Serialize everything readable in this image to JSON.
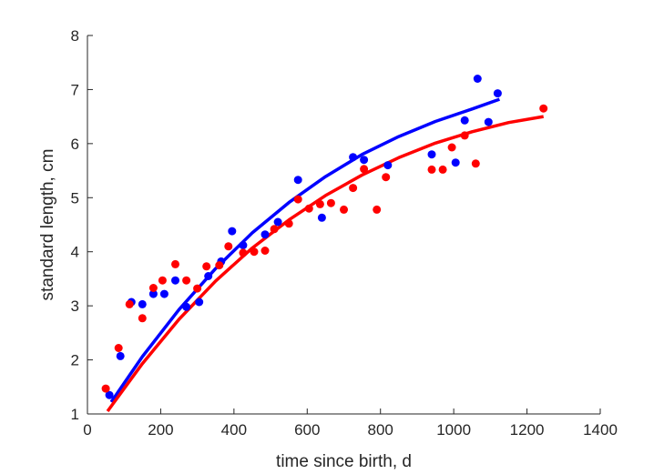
{
  "chart_data": {
    "type": "scatter",
    "title": "",
    "xlabel": "time since birth, d",
    "ylabel": "standard length, cm",
    "xlim": [
      0,
      1400
    ],
    "ylim": [
      1,
      8
    ],
    "xticks": [
      0,
      200,
      400,
      600,
      800,
      1000,
      1200,
      1400
    ],
    "yticks": [
      1,
      2,
      3,
      4,
      5,
      6,
      7,
      8
    ],
    "grid": false,
    "legend": "none",
    "series": [
      {
        "color": "#0000FF",
        "points": [
          [
            60,
            1.35
          ],
          [
            90,
            2.07
          ],
          [
            120,
            3.07
          ],
          [
            150,
            3.03
          ],
          [
            180,
            3.22
          ],
          [
            210,
            3.22
          ],
          [
            240,
            3.47
          ],
          [
            270,
            2.98
          ],
          [
            305,
            3.07
          ],
          [
            330,
            3.55
          ],
          [
            365,
            3.82
          ],
          [
            395,
            4.38
          ],
          [
            425,
            4.12
          ],
          [
            485,
            4.32
          ],
          [
            520,
            4.55
          ],
          [
            575,
            5.33
          ],
          [
            640,
            4.63
          ],
          [
            725,
            5.75
          ],
          [
            755,
            5.7
          ],
          [
            820,
            5.6
          ],
          [
            940,
            5.8
          ],
          [
            1005,
            5.65
          ],
          [
            1030,
            6.43
          ],
          [
            1065,
            7.2
          ],
          [
            1095,
            6.4
          ],
          [
            1120,
            6.93
          ]
        ],
        "fit": [
          [
            65,
            1.22
          ],
          [
            150,
            2.06
          ],
          [
            250,
            2.93
          ],
          [
            350,
            3.69
          ],
          [
            450,
            4.35
          ],
          [
            550,
            4.91
          ],
          [
            650,
            5.39
          ],
          [
            750,
            5.8
          ],
          [
            850,
            6.13
          ],
          [
            950,
            6.41
          ],
          [
            1050,
            6.64
          ],
          [
            1125,
            6.82
          ]
        ]
      },
      {
        "color": "#FF0000",
        "points": [
          [
            50,
            1.47
          ],
          [
            85,
            2.22
          ],
          [
            115,
            3.03
          ],
          [
            150,
            2.77
          ],
          [
            180,
            3.33
          ],
          [
            205,
            3.47
          ],
          [
            240,
            3.77
          ],
          [
            270,
            3.47
          ],
          [
            300,
            3.32
          ],
          [
            325,
            3.73
          ],
          [
            360,
            3.75
          ],
          [
            385,
            4.1
          ],
          [
            425,
            3.98
          ],
          [
            455,
            4.0
          ],
          [
            485,
            4.02
          ],
          [
            510,
            4.42
          ],
          [
            550,
            4.52
          ],
          [
            575,
            4.97
          ],
          [
            605,
            4.8
          ],
          [
            635,
            4.88
          ],
          [
            665,
            4.9
          ],
          [
            700,
            4.78
          ],
          [
            725,
            5.18
          ],
          [
            755,
            5.53
          ],
          [
            790,
            4.78
          ],
          [
            815,
            5.38
          ],
          [
            940,
            5.52
          ],
          [
            970,
            5.52
          ],
          [
            995,
            5.93
          ],
          [
            1030,
            6.15
          ],
          [
            1060,
            5.63
          ],
          [
            1245,
            6.65
          ]
        ],
        "fit": [
          [
            55,
            1.05
          ],
          [
            150,
            1.93
          ],
          [
            250,
            2.75
          ],
          [
            350,
            3.46
          ],
          [
            450,
            4.07
          ],
          [
            550,
            4.59
          ],
          [
            650,
            5.04
          ],
          [
            750,
            5.42
          ],
          [
            850,
            5.74
          ],
          [
            950,
            6.01
          ],
          [
            1050,
            6.22
          ],
          [
            1150,
            6.39
          ],
          [
            1245,
            6.5
          ]
        ]
      }
    ]
  }
}
